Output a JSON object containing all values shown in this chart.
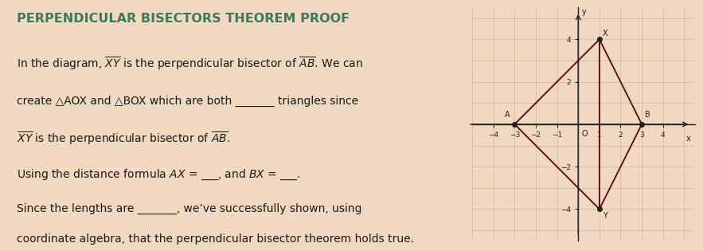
{
  "title": "PERPENDICULAR BISECTORS THEOREM PROOF",
  "title_color": "#3a7a5a",
  "title_fontsize": 11.5,
  "bg_color": "#f0d9c0",
  "text_color": "#1a1a1a",
  "line1": "In the diagram, $\\overline{XY}$ is the perpendicular bisector of $\\overline{AB}$. We can",
  "line2": "create \\u25b3AOX and \\u25b3BOX which are both _______ triangles since",
  "line3": "$\\overline{XY}$ is the perpendicular bisector of $\\overline{AB}$.",
  "line4": "Using the distance formula AX = ___, and BX = ___.",
  "line5": "Since the lengths are _______, we\\u2019ve successfully shown, using",
  "line6": "coordinate algebra, that the perpendicular bisector theorem holds true.",
  "graph": {
    "xlim": [
      -5,
      5.5
    ],
    "ylim": [
      -5.5,
      5.5
    ],
    "A": [
      -3,
      0
    ],
    "B": [
      3,
      0
    ],
    "X": [
      1,
      4
    ],
    "Y": [
      1,
      -4
    ],
    "line_color": "#5a0010",
    "axis_color": "#222222",
    "grid_color": "#c8b89a",
    "dot_color": "#222222",
    "dot_size": 4
  },
  "font_family": "DejaVu Sans",
  "body_fontsize": 10.0
}
